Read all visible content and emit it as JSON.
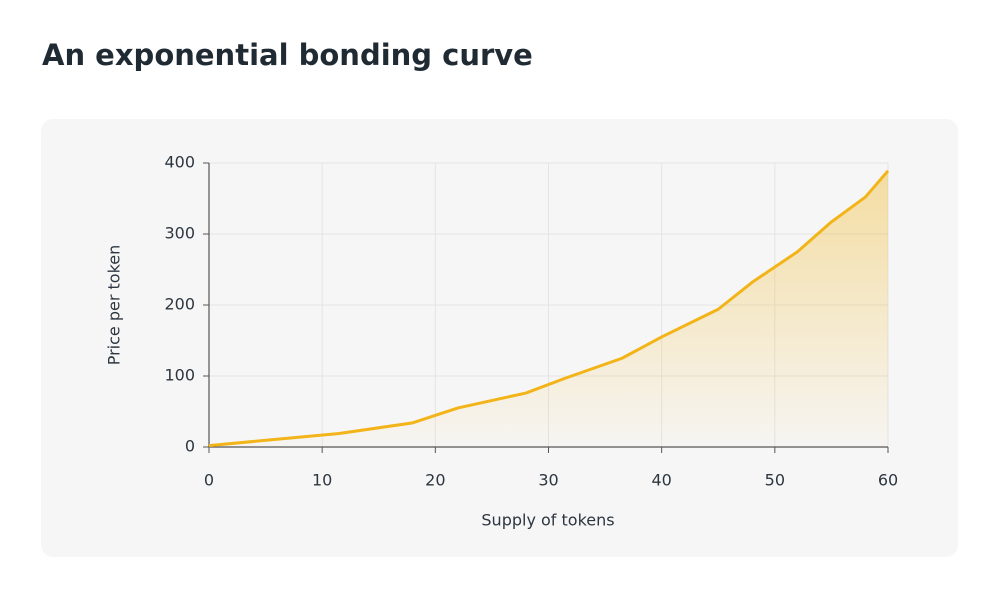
{
  "chart_data": {
    "type": "line",
    "title": "An exponential bonding curve",
    "x_label": "Supply of tokens",
    "y_label": "Price per token",
    "x": [
      0,
      11.5,
      18,
      22,
      28,
      31.5,
      36.5,
      40,
      45,
      48,
      52,
      55,
      58,
      60
    ],
    "series": [
      {
        "name": "Price",
        "color": "#f2b418",
        "values": [
          2,
          19,
          34,
          55,
          76,
          97,
          125,
          155,
          194,
          232,
          275,
          317,
          352,
          389
        ]
      }
    ],
    "xlim": [
      0,
      60
    ],
    "xticks": [
      0,
      10,
      20,
      30,
      40,
      50,
      60
    ],
    "ylim": [
      0,
      400
    ],
    "yticks": [
      0,
      100,
      200,
      300,
      400
    ],
    "grid": true,
    "area_fill": true
  }
}
